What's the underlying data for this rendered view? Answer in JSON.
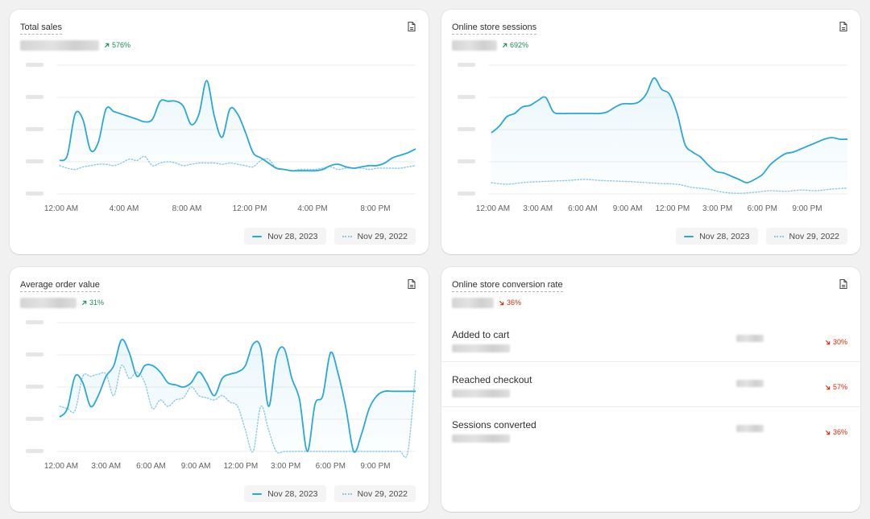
{
  "colors": {
    "primary": "#2aa8d8",
    "comparison": "#8ccbe6",
    "up": "#1a8f5a",
    "down": "#d72c0d"
  },
  "legend": {
    "current": "Nov 28, 2023",
    "previous": "Nov 29, 2022"
  },
  "cards": {
    "total_sales": {
      "title": "Total sales",
      "delta": "576%",
      "delta_direction": "up",
      "icon": "export-icon"
    },
    "sessions": {
      "title": "Online store sessions",
      "delta": "692%",
      "delta_direction": "up",
      "icon": "export-icon"
    },
    "aov": {
      "title": "Average order value",
      "delta": "31%",
      "delta_direction": "up",
      "icon": "export-icon"
    },
    "conversion": {
      "title": "Online store conversion rate",
      "delta": "36%",
      "delta_direction": "down",
      "icon": "export-icon",
      "steps": [
        {
          "label": "Added to cart",
          "delta": "30%"
        },
        {
          "label": "Reached checkout",
          "delta": "57%"
        },
        {
          "label": "Sessions converted",
          "delta": "36%"
        }
      ]
    }
  },
  "chart_data": [
    {
      "type": "line",
      "card": "total_sales",
      "x_ticks": [
        "12:00 AM",
        "4:00 AM",
        "8:00 AM",
        "12:00 PM",
        "4:00 PM",
        "8:00 PM"
      ],
      "x_range": [
        0,
        23
      ],
      "ylim": [
        -1,
        4
      ],
      "series": [
        {
          "name": "Nov 28, 2023",
          "style": "solid",
          "x": [
            0,
            0.5,
            1,
            1.5,
            2,
            2.5,
            3,
            3.5,
            4,
            4.5,
            5,
            5.5,
            6,
            6.5,
            7,
            7.5,
            8,
            8.5,
            9,
            9.5,
            10,
            10.5,
            11,
            11.5,
            12,
            12.5,
            13,
            13.5,
            14,
            14.5,
            15,
            15.5,
            16,
            16.5,
            17,
            17.5,
            18,
            18.5,
            19,
            19.5,
            20,
            20.5,
            21,
            21.5,
            22,
            22.5,
            23
          ],
          "values": [
            0.3,
            0.5,
            2.1,
            1.9,
            0.7,
            1.0,
            2.3,
            2.2,
            2.1,
            2.0,
            1.9,
            1.8,
            1.9,
            2.6,
            2.6,
            2.6,
            2.4,
            1.7,
            2.1,
            3.4,
            2.0,
            1.2,
            2.3,
            2.1,
            1.4,
            0.6,
            0.4,
            0.2,
            0.0,
            -0.05,
            -0.1,
            -0.1,
            -0.1,
            -0.1,
            -0.05,
            0.1,
            0.15,
            0.05,
            0.0,
            0.05,
            0.1,
            0.1,
            0.2,
            0.4,
            0.5,
            0.6,
            0.75
          ]
        },
        {
          "name": "Nov 29, 2022",
          "style": "dotted",
          "x": [
            0,
            0.5,
            1,
            1.5,
            2,
            2.5,
            3,
            3.5,
            4,
            4.5,
            5,
            5.5,
            6,
            6.5,
            7,
            7.5,
            8,
            8.5,
            9,
            9.5,
            10,
            10.5,
            11,
            11.5,
            12,
            12.5,
            13,
            13.5,
            14,
            14.5,
            15,
            15.5,
            16,
            16.5,
            17,
            17.5,
            18,
            18.5,
            19,
            19.5,
            20,
            20.5,
            21,
            21.5,
            22,
            22.5,
            23
          ],
          "values": [
            0.1,
            0.0,
            -0.05,
            0.05,
            0.1,
            0.15,
            0.15,
            0.1,
            0.2,
            0.35,
            0.3,
            0.45,
            0.1,
            0.2,
            0.25,
            0.2,
            0.1,
            0.15,
            0.2,
            0.2,
            0.2,
            0.15,
            0.2,
            0.15,
            0.1,
            0.05,
            0.3,
            0.35,
            0.0,
            -0.05,
            -0.1,
            -0.05,
            -0.05,
            -0.05,
            0.0,
            0.05,
            -0.05,
            0.0,
            0.0,
            0.0,
            -0.05,
            0.0,
            0.0,
            0.0,
            0.0,
            0.05,
            0.1
          ]
        }
      ]
    },
    {
      "type": "line",
      "card": "sessions",
      "x_ticks": [
        "12:00 AM",
        "3:00 AM",
        "6:00 AM",
        "9:00 AM",
        "12:00 PM",
        "3:00 PM",
        "6:00 PM",
        "9:00 PM"
      ],
      "x_range": [
        0,
        23
      ],
      "ylim": [
        0,
        4
      ],
      "series": [
        {
          "name": "Nov 28, 2023",
          "style": "solid",
          "x": [
            0,
            0.5,
            1,
            1.5,
            2,
            2.5,
            3,
            3.5,
            4,
            4.5,
            5,
            5.5,
            6,
            6.5,
            7,
            7.5,
            8,
            8.5,
            9,
            9.5,
            10,
            10.5,
            11,
            11.5,
            12,
            12.5,
            13,
            13.5,
            14,
            14.5,
            15,
            15.5,
            16,
            16.5,
            17,
            17.5,
            18,
            18.5,
            19,
            19.5,
            20,
            20.5,
            21,
            21.5,
            22,
            22.5,
            23
          ],
          "values": [
            1.9,
            2.1,
            2.4,
            2.5,
            2.7,
            2.75,
            2.9,
            3.0,
            2.55,
            2.5,
            2.5,
            2.5,
            2.5,
            2.5,
            2.5,
            2.55,
            2.7,
            2.8,
            2.8,
            2.85,
            3.1,
            3.6,
            3.25,
            3.1,
            2.5,
            1.55,
            1.3,
            1.15,
            0.9,
            0.7,
            0.65,
            0.55,
            0.45,
            0.35,
            0.45,
            0.6,
            0.9,
            1.1,
            1.25,
            1.3,
            1.4,
            1.5,
            1.6,
            1.7,
            1.75,
            1.7,
            1.7
          ]
        },
        {
          "name": "Nov 29, 2022",
          "style": "dotted",
          "x": [
            0,
            1,
            2,
            3,
            4,
            5,
            6,
            7,
            8,
            9,
            10,
            11,
            12,
            13,
            14,
            15,
            16,
            17,
            18,
            19,
            20,
            21,
            22,
            23
          ],
          "values": [
            0.35,
            0.3,
            0.35,
            0.38,
            0.4,
            0.42,
            0.45,
            0.42,
            0.4,
            0.38,
            0.35,
            0.32,
            0.3,
            0.2,
            0.15,
            0.05,
            0.02,
            0.05,
            0.1,
            0.08,
            0.12,
            0.1,
            0.15,
            0.18
          ]
        }
      ]
    },
    {
      "type": "line",
      "card": "aov",
      "x_ticks": [
        "12:00 AM",
        "3:00 AM",
        "6:00 AM",
        "9:00 AM",
        "12:00 PM",
        "3:00 PM",
        "6:00 PM",
        "9:00 PM"
      ],
      "x_range": [
        0,
        23
      ],
      "ylim": [
        0,
        3
      ],
      "series": [
        {
          "name": "Nov 28, 2023",
          "style": "solid",
          "x": [
            0,
            0.5,
            1,
            1.5,
            2,
            2.5,
            3,
            3.5,
            4,
            4.5,
            5,
            5.5,
            6,
            6.5,
            7,
            7.5,
            8,
            8.5,
            9,
            9.5,
            10,
            10.5,
            11,
            11.5,
            12,
            12.5,
            13,
            13.5,
            14,
            14.5,
            15,
            15.5,
            16,
            16.5,
            17,
            17.5,
            18,
            18.5,
            19,
            19.5,
            20,
            20.5,
            21,
            21.5,
            22,
            22.5,
            23
          ],
          "values": [
            0.8,
            1.0,
            1.75,
            1.6,
            1.05,
            1.3,
            1.75,
            2.0,
            2.6,
            2.3,
            1.75,
            2.0,
            2.0,
            1.85,
            1.6,
            1.55,
            1.5,
            1.6,
            1.85,
            1.6,
            1.3,
            1.7,
            1.8,
            1.85,
            2.0,
            2.5,
            2.4,
            1.05,
            2.2,
            2.4,
            1.7,
            1.2,
            0.0,
            1.1,
            1.3,
            2.3,
            1.8,
            1.0,
            0.0,
            0.4,
            1.0,
            1.3,
            1.4,
            1.4,
            1.4,
            1.4,
            1.4
          ]
        },
        {
          "name": "Nov 29, 2022",
          "style": "dotted",
          "x": [
            0,
            0.5,
            1,
            1.5,
            2,
            2.5,
            3,
            3.5,
            4,
            4.5,
            5,
            5.5,
            6,
            6.5,
            7,
            7.5,
            8,
            8.5,
            9,
            9.5,
            10,
            10.5,
            11,
            11.5,
            12,
            12.5,
            13,
            13.5,
            14,
            14.5,
            15,
            15.5,
            16,
            16.5,
            17,
            17.5,
            18,
            18.5,
            19,
            19.5,
            20,
            20.5,
            21,
            21.5,
            22,
            22.5,
            23
          ],
          "values": [
            1.05,
            1.0,
            0.95,
            1.75,
            1.75,
            1.8,
            1.8,
            1.3,
            2.0,
            1.7,
            1.85,
            1.6,
            1.0,
            1.2,
            1.05,
            1.2,
            1.25,
            1.5,
            1.3,
            1.25,
            1.2,
            1.3,
            1.15,
            1.05,
            0.5,
            0.0,
            1.05,
            0.5,
            0.0,
            0.0,
            0.0,
            0.0,
            0.0,
            0.0,
            0.0,
            0.0,
            0.0,
            0.0,
            0.0,
            0.0,
            0.0,
            0.0,
            0.0,
            0.0,
            0.0,
            0.0,
            1.9
          ]
        }
      ]
    }
  ]
}
